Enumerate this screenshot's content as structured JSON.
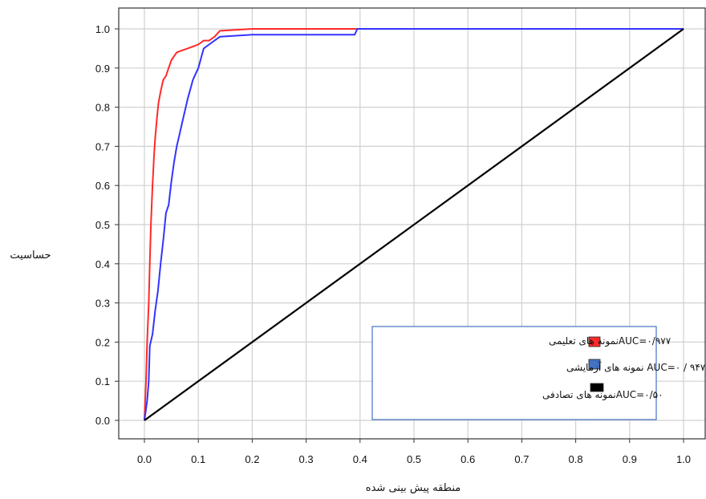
{
  "chart_data": {
    "type": "line",
    "xlabel": "منطقه پیش بینی شده",
    "ylabel": "حساسیت",
    "xlim": [
      0,
      1
    ],
    "ylim": [
      0,
      1
    ],
    "grid": true,
    "legend_placement": "bottom-right",
    "x_ticks": [
      "0.0",
      "0.1",
      "0.2",
      "0.3",
      "0.4",
      "0.5",
      "0.6",
      "0.7",
      "0.8",
      "0.9",
      "1.0"
    ],
    "y_ticks": [
      "0.0",
      "0.1",
      "0.2",
      "0.3",
      "0.4",
      "0.5",
      "0.6",
      "0.7",
      "0.8",
      "0.9",
      "1.0"
    ],
    "series": [
      {
        "name": "AUC=۰/۹۷۷نمونه های تعلیمی",
        "color": "#ff2a2a",
        "x": [
          0,
          0.003,
          0.005,
          0.008,
          0.01,
          0.012,
          0.015,
          0.018,
          0.02,
          0.023,
          0.026,
          0.03,
          0.035,
          0.04,
          0.045,
          0.05,
          0.06,
          0.07,
          0.08,
          0.09,
          0.1,
          0.11,
          0.12,
          0.13,
          0.14,
          0.2,
          0.3,
          0.4,
          0.6,
          0.8,
          1.0
        ],
        "y": [
          0,
          0.1,
          0.2,
          0.3,
          0.4,
          0.5,
          0.6,
          0.68,
          0.72,
          0.77,
          0.81,
          0.84,
          0.87,
          0.88,
          0.9,
          0.92,
          0.94,
          0.945,
          0.95,
          0.955,
          0.96,
          0.97,
          0.97,
          0.98,
          0.995,
          1.0,
          1.0,
          1.0,
          1.0,
          1.0,
          1.0
        ]
      },
      {
        "name": "AUC=۰ / ۹۴۷ نمونه های آزمایشی",
        "color": "#3333ff",
        "x": [
          0,
          0.005,
          0.008,
          0.01,
          0.015,
          0.02,
          0.025,
          0.03,
          0.035,
          0.04,
          0.045,
          0.05,
          0.055,
          0.06,
          0.065,
          0.07,
          0.075,
          0.08,
          0.09,
          0.1,
          0.11,
          0.12,
          0.13,
          0.14,
          0.2,
          0.3,
          0.39,
          0.395,
          0.4,
          0.6,
          0.8,
          1.0
        ],
        "y": [
          0,
          0.05,
          0.1,
          0.19,
          0.22,
          0.28,
          0.33,
          0.4,
          0.46,
          0.53,
          0.55,
          0.61,
          0.66,
          0.7,
          0.73,
          0.76,
          0.79,
          0.82,
          0.87,
          0.9,
          0.95,
          0.96,
          0.97,
          0.98,
          0.985,
          0.985,
          0.985,
          1.0,
          1.0,
          1.0,
          1.0,
          1.0
        ]
      },
      {
        "name": "AUC=۰/۵۰نمونه های تصادفی",
        "color": "#000000",
        "x": [
          0,
          1
        ],
        "y": [
          0,
          1
        ]
      }
    ]
  }
}
